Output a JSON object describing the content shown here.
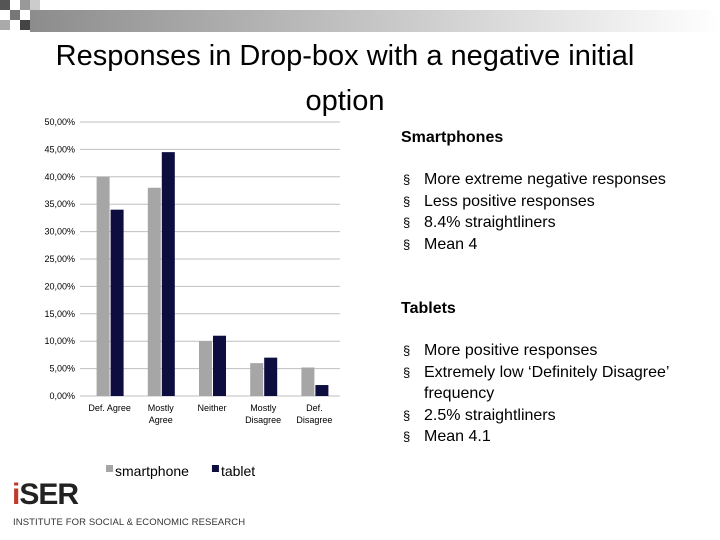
{
  "slide": {
    "title": "Responses in Drop-box with a negative initial option",
    "sections": [
      {
        "heading": "Smartphones",
        "bullets": [
          "More extreme negative responses",
          "Less positive responses",
          "8.4% straightliners",
          "Mean 4"
        ]
      },
      {
        "heading": "Tablets",
        "bullets": [
          "More positive responses",
          "Extremely low ‘Definitely Disagree’ frequency",
          "2.5% straightliners",
          "Mean 4.1"
        ]
      }
    ]
  },
  "logo": {
    "name": "iSER",
    "text": "INSTITUTE FOR SOCIAL & ECONOMIC RESEARCH"
  },
  "chart_data": {
    "type": "bar",
    "categories": [
      "Def. Agree",
      "Mostly Agree",
      "Neither",
      "Mostly Disagree",
      "Def. Disagree"
    ],
    "series": [
      {
        "name": "smartphone",
        "color": "#a6a6a6",
        "values": [
          40,
          38,
          10,
          6,
          5.2
        ]
      },
      {
        "name": "tablet",
        "color": "#0d0d40",
        "values": [
          34,
          44.5,
          11,
          7,
          2
        ]
      }
    ],
    "ylim": [
      0,
      50
    ],
    "yticks": [
      {
        "value": 0,
        "label": "0,00%"
      },
      {
        "value": 5,
        "label": "5,00%"
      },
      {
        "value": 10,
        "label": "10,00%"
      },
      {
        "value": 15,
        "label": "15,00%"
      },
      {
        "value": 20,
        "label": "20,00%"
      },
      {
        "value": 25,
        "label": "25,00%"
      },
      {
        "value": 30,
        "label": "30,00%"
      },
      {
        "value": 35,
        "label": "35,00%"
      },
      {
        "value": 40,
        "label": "40,00%"
      },
      {
        "value": 45,
        "label": "45,00%"
      },
      {
        "value": 50,
        "label": "50,00%"
      }
    ],
    "grid": true,
    "legend": "bottom"
  }
}
